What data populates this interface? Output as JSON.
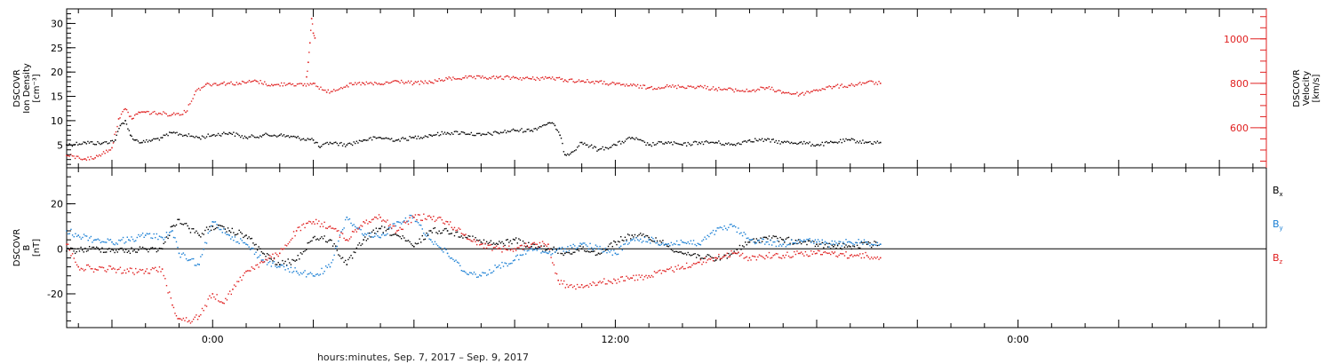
{
  "chart_data": {
    "type": "scatter",
    "xlabel": "hours:minutes, Sep.  7, 2017 – Sep.  9, 2017",
    "x_tick_labels": [
      "0:00",
      "12:00",
      "0:00"
    ],
    "x_tick_hours": [
      0,
      12,
      24
    ],
    "x_range_hours": [
      -4.35,
      31.4
    ],
    "panels": [
      {
        "id": "plasma",
        "left_axis": {
          "label_lines": [
            "DSCOVR",
            "Ion Density",
            "[cm⁻³]"
          ],
          "ticks": [
            5,
            10,
            15,
            20,
            25,
            30
          ],
          "ylim": [
            0.3,
            33
          ],
          "color": "#000000"
        },
        "right_axis": {
          "label_lines": [
            "DSCOVR",
            "Velocity",
            "[km/s]"
          ],
          "ticks": [
            600,
            800,
            1000
          ],
          "ylim": [
            420,
            1135
          ],
          "color": "#e02020"
        },
        "series": [
          {
            "color": "#000000",
            "axis": "left",
            "x": [
              -4.35,
              -3.8,
              -3.3,
              -2.9,
              -2.75,
              -2.6,
              -2.45,
              -2.3,
              -2.1,
              -1.8,
              -1.5,
              -1.2,
              -0.8,
              -0.4,
              0,
              0.5,
              1,
              1.5,
              2,
              2.5,
              3,
              3.2,
              3.5,
              4,
              4.5,
              5,
              5.5,
              6,
              6.5,
              7,
              7.5,
              8,
              8.5,
              9,
              9.5,
              10,
              10.2,
              10.35,
              10.5,
              10.7,
              11,
              11.5,
              12,
              12.5,
              13,
              13.5,
              14,
              14.5,
              15,
              15.5,
              16,
              16.5,
              17,
              17.5,
              18,
              18.5,
              19,
              19.5,
              19.9
            ],
            "y": [
              5,
              5.5,
              5.3,
              6,
              9,
              10,
              7,
              6,
              5.5,
              6,
              6.5,
              7.5,
              7,
              6.5,
              7,
              7.5,
              6.5,
              7,
              7,
              6.5,
              6,
              4.5,
              5.5,
              5,
              6,
              6.5,
              6,
              6.5,
              7,
              7.5,
              7.5,
              7,
              7.5,
              8,
              8,
              9.5,
              9,
              7,
              3,
              3.5,
              5.5,
              4,
              5,
              6.5,
              5,
              5.5,
              5,
              5.5,
              5.5,
              5,
              6,
              6,
              5.5,
              5.5,
              5,
              5.5,
              6,
              5.5,
              5.5
            ]
          },
          {
            "color": "#e02020",
            "axis": "right",
            "x": [
              -4.35,
              -3.8,
              -3.5,
              -3.0,
              -2.8,
              -2.6,
              -2.4,
              -2.2,
              -2,
              -1.6,
              -1.2,
              -0.8,
              -0.5,
              -0.2,
              0.3,
              0.8,
              1.3,
              1.8,
              2.3,
              2.7,
              3,
              3.4,
              4,
              4.5,
              5,
              5.5,
              6,
              6.5,
              7,
              7.5,
              8,
              8.5,
              9,
              9.5,
              10,
              10.5,
              11,
              11.5,
              12,
              12.5,
              13,
              13.5,
              14,
              14.5,
              15,
              15.5,
              16,
              16.5,
              17,
              17.5,
              18,
              18.5,
              19,
              19.5,
              19.9
            ],
            "y": [
              475,
              460,
              465,
              510,
              640,
              685,
              640,
              670,
              670,
              665,
              660,
              670,
              765,
              795,
              800,
              800,
              810,
              790,
              800,
              790,
              800,
              760,
              790,
              800,
              795,
              810,
              800,
              805,
              820,
              825,
              825,
              825,
              825,
              820,
              825,
              815,
              810,
              805,
              795,
              790,
              780,
              785,
              785,
              785,
              775,
              770,
              765,
              780,
              760,
              750,
              770,
              785,
              790,
              805,
              800
            ]
          },
          {
            "color": "#e02020",
            "axis": "left",
            "note": "density spike",
            "x": [
              2.8,
              2.85,
              2.9,
              2.95,
              3.0,
              3.05
            ],
            "y": [
              19,
              22,
              26,
              31,
              28,
              27
            ]
          }
        ]
      },
      {
        "id": "mag",
        "left_axis": {
          "label_lines": [
            "DSCOVR",
            "B",
            "[nT]"
          ],
          "ticks": [
            -20,
            0,
            20
          ],
          "ylim": [
            -35,
            36
          ],
          "color": "#000000"
        },
        "zero_line": true,
        "series": [
          {
            "name": "B",
            "subscript": "x",
            "color": "#000000",
            "x": [
              -4.35,
              -3.5,
              -2.5,
              -2,
              -1.5,
              -1.2,
              -1,
              -0.7,
              -0.4,
              0,
              0.5,
              1,
              1.5,
              2,
              2.5,
              3,
              3.5,
              4,
              4.5,
              5,
              5.5,
              6,
              6.5,
              7,
              7.5,
              8,
              8.5,
              9,
              9.5,
              10,
              10.5,
              11,
              11.5,
              12,
              12.5,
              13,
              13.5,
              14,
              14.5,
              15,
              15.5,
              16,
              16.5,
              17,
              17.5,
              18,
              18.5,
              19,
              19.5,
              19.9
            ],
            "y": [
              -1,
              0,
              -1,
              0,
              0,
              10,
              13,
              9,
              6,
              10,
              8,
              6,
              -2,
              -7,
              -5,
              5,
              4,
              -7,
              4,
              9,
              6,
              1,
              8,
              8,
              6,
              3,
              2,
              4,
              1,
              0,
              -2,
              0,
              -2,
              3,
              6,
              5,
              2,
              -2,
              -3,
              -5,
              -2,
              3,
              5,
              4,
              3,
              2,
              1,
              1,
              2,
              2
            ]
          },
          {
            "name": "B",
            "subscript": "y",
            "color": "#1a7fd4",
            "x": [
              -4.35,
              -4,
              -3.5,
              -3,
              -2.5,
              -2,
              -1.5,
              -1.2,
              -1,
              -0.7,
              -0.4,
              0,
              0.5,
              1,
              1.5,
              2,
              2.5,
              3,
              3.5,
              4,
              4.5,
              5,
              5.5,
              6,
              6.5,
              7,
              7.5,
              8,
              8.5,
              9,
              9.5,
              10,
              10.5,
              11,
              11.5,
              12,
              12.5,
              13,
              13.5,
              14,
              14.5,
              15,
              15.5,
              16,
              16.5,
              17,
              17.5,
              18,
              18.5,
              19,
              19.5,
              19.9
            ],
            "y": [
              8,
              6,
              4,
              3,
              4,
              6,
              5,
              8,
              -2,
              -5,
              -7,
              12,
              6,
              2,
              -5,
              -8,
              -10,
              -12,
              -8,
              14,
              6,
              5,
              12,
              14,
              4,
              -2,
              -10,
              -12,
              -8,
              -5,
              0,
              -2,
              0,
              2,
              0,
              -2,
              4,
              4,
              2,
              3,
              2,
              8,
              10,
              4,
              3,
              2,
              4,
              3,
              2,
              3,
              3,
              2
            ]
          },
          {
            "name": "B",
            "subscript": "z",
            "color": "#e02020",
            "x": [
              -4.35,
              -4,
              -3.5,
              -3,
              -2.5,
              -2,
              -1.5,
              -1.2,
              -1,
              -0.7,
              -0.4,
              0,
              0.3,
              0.6,
              1,
              1.5,
              2,
              2.5,
              3,
              3.5,
              4,
              4.5,
              5,
              5.5,
              6,
              6.5,
              7,
              7.5,
              8,
              8.5,
              9,
              9.5,
              10,
              10.3,
              10.6,
              11,
              11.5,
              12,
              12.5,
              13,
              13.5,
              14,
              14.5,
              15,
              15.5,
              16,
              16.5,
              17,
              17.5,
              18,
              18.5,
              19,
              19.5,
              19.9
            ],
            "y": [
              2,
              -8,
              -9,
              -9,
              -10,
              -10,
              -9,
              -25,
              -31,
              -32,
              -30,
              -20,
              -24,
              -18,
              -10,
              -6,
              -2,
              8,
              12,
              10,
              4,
              12,
              14,
              8,
              14,
              14,
              12,
              6,
              2,
              0,
              0,
              2,
              2,
              -14,
              -17,
              -16,
              -15,
              -14,
              -13,
              -12,
              -10,
              -8,
              -6,
              -4,
              -2,
              -4,
              -3,
              -3,
              -2,
              -2,
              -2,
              -3,
              -3,
              -4
            ]
          }
        ]
      }
    ]
  }
}
